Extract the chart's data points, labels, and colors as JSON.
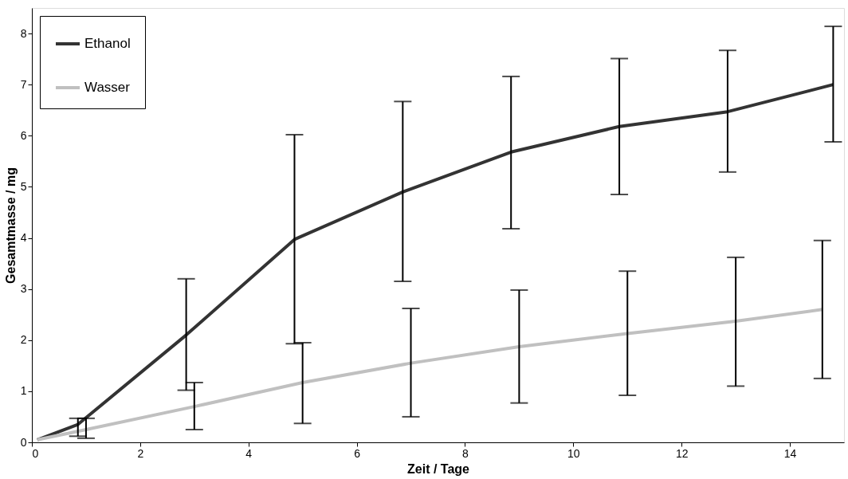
{
  "chart_data": {
    "type": "line",
    "xlabel": "Zeit / Tage",
    "ylabel": "Gesamtmasse / mg",
    "xlim": [
      0,
      15
    ],
    "xticks": [
      0,
      2,
      4,
      6,
      8,
      10,
      12,
      14
    ],
    "ylim": [
      0,
      8.5
    ],
    "yticks": [
      0,
      1,
      2,
      3,
      4,
      5,
      6,
      7,
      8
    ],
    "grid": false,
    "legend": "top left",
    "marker": "none",
    "line_style": "solid",
    "series": [
      {
        "name": "Ethanol",
        "color": "#333333",
        "x": [
          0.1,
          0.85,
          2.85,
          4.85,
          6.85,
          8.85,
          10.85,
          12.85,
          14.8
        ],
        "values": [
          0.05,
          0.35,
          2.1,
          3.97,
          4.9,
          5.68,
          6.18,
          6.47,
          7.0
        ],
        "errors": [
          null,
          [
            0.12,
            0.47
          ],
          [
            1.02,
            3.2
          ],
          [
            1.93,
            6.02
          ],
          [
            3.15,
            6.67
          ],
          [
            4.18,
            7.16
          ],
          [
            4.85,
            7.51
          ],
          [
            5.29,
            7.67
          ],
          [
            5.88,
            8.14
          ]
        ]
      },
      {
        "name": "Wasser",
        "color": "#c0c0c0",
        "x": [
          0.1,
          1.0,
          3.0,
          5.0,
          7.0,
          9.0,
          11.0,
          13.0,
          14.6
        ],
        "values": [
          0.05,
          0.25,
          0.7,
          1.17,
          1.55,
          1.87,
          2.13,
          2.37,
          2.6
        ],
        "errors": [
          null,
          [
            0.08,
            0.47
          ],
          [
            0.25,
            1.17
          ],
          [
            0.37,
            1.95
          ],
          [
            0.5,
            2.62
          ],
          [
            0.77,
            2.98
          ],
          [
            0.92,
            3.35
          ],
          [
            1.1,
            3.62
          ],
          [
            1.25,
            3.95
          ]
        ]
      }
    ]
  }
}
